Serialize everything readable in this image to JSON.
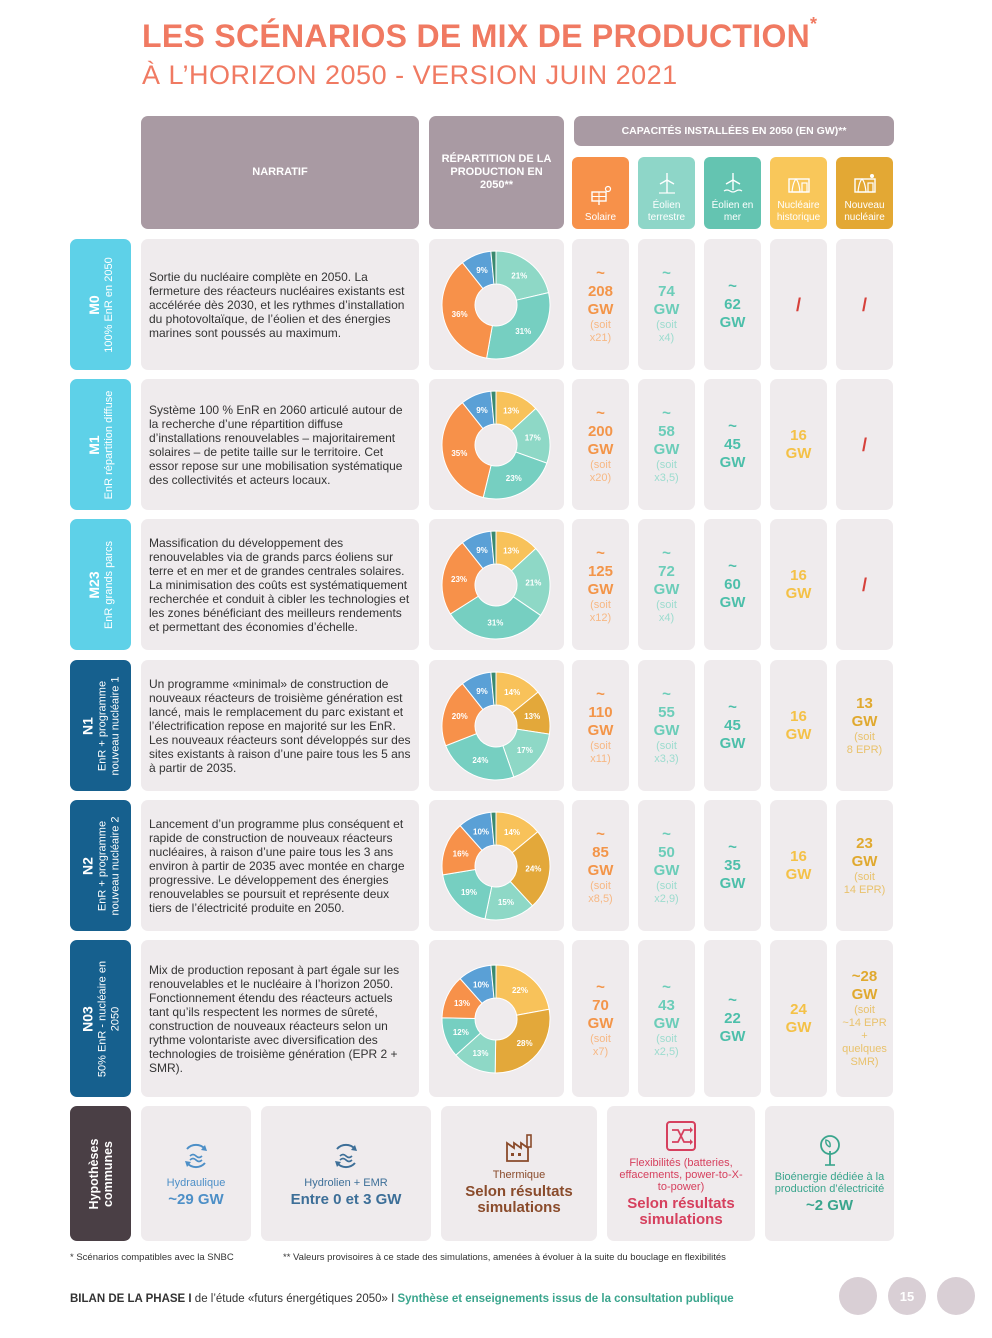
{
  "title": {
    "line1": "LES SCÉNARIOS DE MIX DE PRODUCTION",
    "star": "*",
    "line2": "À L’HORIZON 2050 - VERSION JUIN 2021"
  },
  "headers": {
    "narratif": "NARRATIF",
    "repartition": "RÉPARTITION DE LA PRODUCTION EN 2050**",
    "capacites": "CAPACITÉS INSTALLÉES EN 2050 (EN GW)**"
  },
  "technologies": [
    {
      "label": "Solaire",
      "icon": "solar-panel-icon",
      "color": "#f7914a"
    },
    {
      "label": "Éolien terrestre",
      "icon": "wind-turbine-icon",
      "color": "#8ed6c8"
    },
    {
      "label": "Éolien en mer",
      "icon": "offshore-wind-icon",
      "color": "#64c4b1"
    },
    {
      "label": "Nucléaire historique",
      "icon": "nuclear-plant-icon",
      "color": "#f9c75a"
    },
    {
      "label": "Nouveau nucléaire",
      "icon": "new-nuclear-icon",
      "color": "#e3a834"
    }
  ],
  "pie_colors": {
    "solaire": "#f8c25a",
    "nucleaire_hist": "#e3a83a",
    "eolien_terrestre": "#8ed8c6",
    "eolien_mer": "#76cfc1",
    "solaire_pv": "#f7914a",
    "nouveau_nucleaire": "#f7914a",
    "hydraulique": "#5aa0d6",
    "bioenergie": "#3aa58d"
  },
  "scenarios": [
    {
      "code": "M0",
      "subtitle": "100% EnR en 2050",
      "color": "#5ed1e8",
      "narrative": "Sortie du nucléaire complète en 2050. La fermeture des réacteurs nucléaires existants est accélérée dès 2030, et les rythmes d’installation du photovoltaïque, de l’éolien et des énergies marines sont poussés au maximum.",
      "pie": [
        {
          "label": "21%",
          "value": 21,
          "color": "#8ed8c6"
        },
        {
          "label": "31%",
          "value": 31,
          "color": "#76cfc1"
        },
        {
          "label": "36%",
          "value": 36,
          "color": "#f7914a"
        },
        {
          "label": "9%",
          "value": 9,
          "color": "#5aa0d6"
        },
        {
          "label": "",
          "value": 1.5,
          "color": "#3a8a6f"
        }
      ],
      "caps": [
        {
          "val": "~\n208\nGW",
          "soit": "(soit\nx21)"
        },
        {
          "val": "~\n74\nGW",
          "soit": "(soit\nx4)"
        },
        {
          "val": "~\n62\nGW",
          "soit": ""
        },
        {
          "slash": "/"
        },
        {
          "slash": "/"
        }
      ]
    },
    {
      "code": "M1",
      "subtitle": "EnR répartition diffuse",
      "color": "#5ed1e8",
      "narrative": "Système 100 % EnR en 2060 articulé autour de la recherche d’une répartition diffuse d’installations renouvelables – majoritairement solaires – de petite taille sur le territoire. Cet essor repose sur une mobilisation systématique des collectivités et acteurs locaux.",
      "pie": [
        {
          "label": "13%",
          "value": 13,
          "color": "#f8c25a"
        },
        {
          "label": "17%",
          "value": 17,
          "color": "#8ed8c6"
        },
        {
          "label": "23%",
          "value": 23,
          "color": "#76cfc1"
        },
        {
          "label": "35%",
          "value": 35,
          "color": "#f7914a"
        },
        {
          "label": "9%",
          "value": 9,
          "color": "#5aa0d6"
        },
        {
          "label": "",
          "value": 1.5,
          "color": "#3a8a6f"
        }
      ],
      "caps": [
        {
          "val": "~\n200\nGW",
          "soit": "(soit\nx20)"
        },
        {
          "val": "~\n58\nGW",
          "soit": "(soit\nx3,5)"
        },
        {
          "val": "~\n45\nGW",
          "soit": ""
        },
        {
          "val": "16\nGW",
          "soit": ""
        },
        {
          "slash": "/"
        }
      ]
    },
    {
      "code": "M23",
      "subtitle": "EnR grands parcs",
      "color": "#5ed1e8",
      "narrative": "Massification du développement des renouvelables via de grands parcs éoliens sur terre et en mer et de grandes centrales solaires. La minimisation des coûts est systématiquement recherchée et conduit à cibler les technologies et les zones bénéficiant des meilleurs rendements et permettant des économies d’échelle.",
      "pie": [
        {
          "label": "13%",
          "value": 13,
          "color": "#f8c25a"
        },
        {
          "label": "21%",
          "value": 21,
          "color": "#8ed8c6"
        },
        {
          "label": "31%",
          "value": 31,
          "color": "#76cfc1"
        },
        {
          "label": "23%",
          "value": 23,
          "color": "#f7914a"
        },
        {
          "label": "9%",
          "value": 9,
          "color": "#5aa0d6"
        },
        {
          "label": "",
          "value": 1.5,
          "color": "#3a8a6f"
        }
      ],
      "caps": [
        {
          "val": "~\n125\nGW",
          "soit": "(soit\nx12)"
        },
        {
          "val": "~\n72\nGW",
          "soit": "(soit\nx4)"
        },
        {
          "val": "~\n60\nGW",
          "soit": ""
        },
        {
          "val": "16\nGW",
          "soit": ""
        },
        {
          "slash": "/"
        }
      ]
    },
    {
      "code": "N1",
      "subtitle": "EnR + programme nouveau nucléaire 1",
      "color": "#16608e",
      "narrative": "Un programme «minimal» de construction de nouveaux réacteurs de troisième génération est lancé, mais le remplacement du parc existant et l’électrification repose en majorité sur les EnR. Les nouveaux réacteurs sont développés sur des sites existants à raison d’une paire tous les 5 ans à partir de 2035.",
      "pie": [
        {
          "label": "14%",
          "value": 14,
          "color": "#f8c25a"
        },
        {
          "label": "13%",
          "value": 13,
          "color": "#e3a83a"
        },
        {
          "label": "17%",
          "value": 17,
          "color": "#8ed8c6"
        },
        {
          "label": "24%",
          "value": 24,
          "color": "#76cfc1"
        },
        {
          "label": "20%",
          "value": 20,
          "color": "#f7914a"
        },
        {
          "label": "9%",
          "value": 9,
          "color": "#5aa0d6"
        },
        {
          "label": "",
          "value": 1.5,
          "color": "#3a8a6f"
        }
      ],
      "caps": [
        {
          "val": "~\n110\nGW",
          "soit": "(soit\nx11)"
        },
        {
          "val": "~\n55\nGW",
          "soit": "(soit\nx3,3)"
        },
        {
          "val": "~\n45\nGW",
          "soit": ""
        },
        {
          "val": "16\nGW",
          "soit": ""
        },
        {
          "val": "13\nGW",
          "soit": "(soit\n8 EPR)"
        }
      ]
    },
    {
      "code": "N2",
      "subtitle": "EnR + programme nouveau nucléaire 2",
      "color": "#16608e",
      "narrative": "Lancement d’un programme plus conséquent et rapide de construction de nouveaux réacteurs nucléaires, à raison d’une paire tous les 3 ans environ à partir de 2035 avec montée en charge progressive. Le développement des énergies renouvelables se poursuit et représente deux tiers de l’électricité produite en 2050.",
      "pie": [
        {
          "label": "14%",
          "value": 14,
          "color": "#f8c25a"
        },
        {
          "label": "24%",
          "value": 24,
          "color": "#e3a83a"
        },
        {
          "label": "15%",
          "value": 15,
          "color": "#8ed8c6"
        },
        {
          "label": "19%",
          "value": 19,
          "color": "#76cfc1"
        },
        {
          "label": "16%",
          "value": 16,
          "color": "#f7914a"
        },
        {
          "label": "10%",
          "value": 10,
          "color": "#5aa0d6"
        },
        {
          "label": "",
          "value": 1.5,
          "color": "#3a8a6f"
        }
      ],
      "caps": [
        {
          "val": "~\n85\nGW",
          "soit": "(soit\nx8,5)"
        },
        {
          "val": "~\n50\nGW",
          "soit": "(soit\nx2,9)"
        },
        {
          "val": "~\n35\nGW",
          "soit": ""
        },
        {
          "val": "16\nGW",
          "soit": ""
        },
        {
          "val": "23\nGW",
          "soit": "(soit\n14 EPR)"
        }
      ]
    },
    {
      "code": "N03",
      "subtitle": "50% EnR - nucléaire en 2050",
      "color": "#16608e",
      "narrative": "Mix de production reposant à part égale sur les renouvelables et le nucléaire à l’horizon 2050. Fonctionnement étendu des réacteurs actuels tant qu’ils respectent les normes de sûreté, construction de nouveaux réacteurs selon un rythme volontariste avec diversification des technologies de troisième génération (EPR 2 + SMR).",
      "pie": [
        {
          "label": "22%",
          "value": 22,
          "color": "#f8c25a"
        },
        {
          "label": "28%",
          "value": 28,
          "color": "#e3a83a"
        },
        {
          "label": "13%",
          "value": 13,
          "color": "#8ed8c6"
        },
        {
          "label": "12%",
          "value": 12,
          "color": "#76cfc1"
        },
        {
          "label": "13%",
          "value": 13,
          "color": "#f7914a"
        },
        {
          "label": "10%",
          "value": 10,
          "color": "#5aa0d6"
        },
        {
          "label": "",
          "value": 1.5,
          "color": "#3a8a6f"
        }
      ],
      "caps": [
        {
          "val": "~\n70\nGW",
          "soit": "(soit\nx7)"
        },
        {
          "val": "~\n43\nGW",
          "soit": "(soit\nx2,5)"
        },
        {
          "val": "~\n22\nGW",
          "soit": ""
        },
        {
          "val": "24\nGW",
          "soit": ""
        },
        {
          "val": "~28\nGW",
          "soit": "(soit\n~14 EPR\n+\nquelques\nSMR)"
        }
      ]
    }
  ],
  "hypotheses": {
    "label": "Hypothèses communes",
    "items": [
      {
        "name": "Hydraulique",
        "value": "~29 GW",
        "icon": "hydraulic-icon"
      },
      {
        "name": "Hydrolien + EMR",
        "value": "Entre 0 et 3 GW",
        "icon": "tidal-icon"
      },
      {
        "name": "Thermique",
        "value": "Selon résultats simulations",
        "icon": "factory-icon"
      },
      {
        "name": "Flexibilités (batteries, effacements, power-to-X-to-power)",
        "value": "Selon résultats simulations",
        "icon": "flexibility-icon"
      },
      {
        "name": "Bioénergie dédiée à la production d’électricité",
        "value": "~2 GW",
        "icon": "bioenergy-icon"
      }
    ]
  },
  "footnotes": {
    "note1": "* Scénarios compatibles avec la SNBC",
    "note2": "** Valeurs provisoires à ce stade des simulations, amenées à évoluer à la suite du bouclage en flexibilités"
  },
  "footer": {
    "bold": "BILAN DE LA PHASE I",
    "text": " de l’étude «futurs énergétiques 2050» ",
    "sep": "I",
    "synthese": " Synthèse et enseignements issus de la consultation publique",
    "page": "15"
  }
}
